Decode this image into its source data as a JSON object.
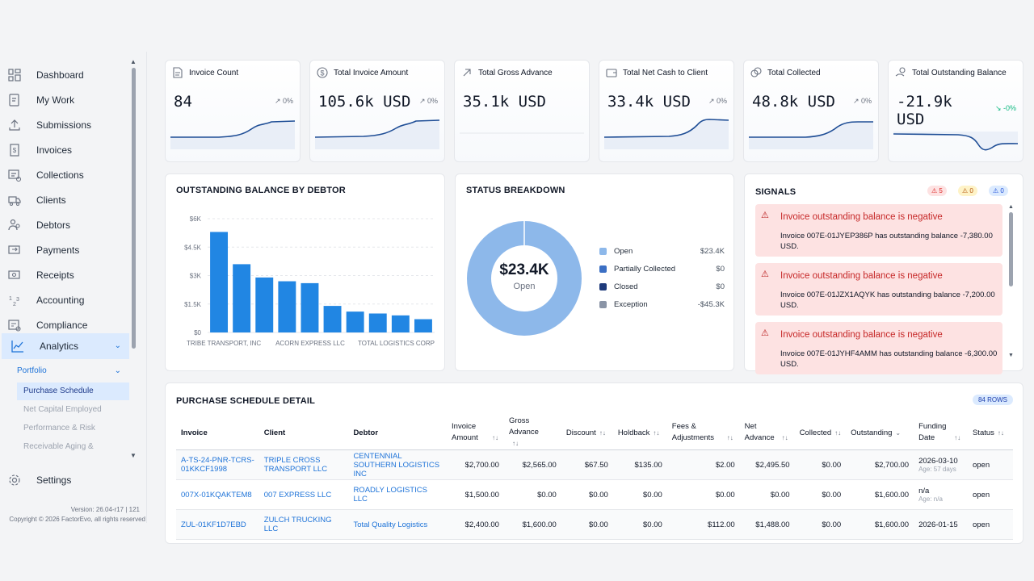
{
  "sidebar": {
    "items": [
      {
        "label": "Dashboard",
        "icon": "dashboard-icon"
      },
      {
        "label": "My Work",
        "icon": "clipboard-icon"
      },
      {
        "label": "Submissions",
        "icon": "upload-icon"
      },
      {
        "label": "Invoices",
        "icon": "invoice-icon"
      },
      {
        "label": "Collections",
        "icon": "collections-icon"
      },
      {
        "label": "Clients",
        "icon": "truck-icon"
      },
      {
        "label": "Debtors",
        "icon": "people-icon"
      },
      {
        "label": "Payments",
        "icon": "payment-icon"
      },
      {
        "label": "Receipts",
        "icon": "receipt-icon"
      },
      {
        "label": "Accounting",
        "icon": "accounting-icon"
      },
      {
        "label": "Compliance",
        "icon": "compliance-icon"
      },
      {
        "label": "Analytics",
        "icon": "analytics-icon"
      }
    ],
    "submenu_header": "Portfolio",
    "subitems": [
      "Purchase Schedule",
      "Net Capital Employed",
      "Performance & Risk",
      "Receivable Aging &"
    ],
    "settings_label": "Settings",
    "version": "Version: 26.04-r17 | 121",
    "copyright": "Copyright © 2026 FactorEvo, all rights reserved"
  },
  "kpis": [
    {
      "title": "Invoice Count",
      "value": "84",
      "delta": "↗ 0%",
      "icon": "document-icon"
    },
    {
      "title": "Total Invoice Amount",
      "value": "105.6k USD",
      "delta": "↗ 0%",
      "icon": "dollar-icon"
    },
    {
      "title": "Total Gross Advance",
      "value": "35.1k USD",
      "delta": "",
      "icon": "arrow-up-right-icon"
    },
    {
      "title": "Total Net Cash to Client",
      "value": "33.4k USD",
      "delta": "↗ 0%",
      "icon": "wallet-icon"
    },
    {
      "title": "Total Collected",
      "value": "48.8k USD",
      "delta": "↗ 0%",
      "icon": "coins-icon"
    },
    {
      "title": "Total Outstanding Balance",
      "value_line1": "-21.9k",
      "value_line2": "USD",
      "delta": "↘ -0%",
      "icon": "hand-coins-icon"
    }
  ],
  "outstanding": {
    "title": "OUTSTANDING BALANCE BY DEBTOR"
  },
  "chart_data": {
    "type": "bar",
    "title": "OUTSTANDING BALANCE BY DEBTOR",
    "categories": [
      "TRIBE TRANSPORT, INC",
      "",
      "",
      "",
      "ACORN EXPRESS LLC",
      "",
      "",
      "TOTAL LOGISTICS CORP",
      "",
      ""
    ],
    "values": [
      5300,
      3600,
      2900,
      2700,
      2600,
      1400,
      1100,
      1000,
      900,
      700
    ],
    "yticks": [
      "$0",
      "$1.5K",
      "$3K",
      "$4.5K",
      "$6K"
    ],
    "ylim": [
      0,
      6000
    ],
    "bar_color": "#2186e3"
  },
  "status": {
    "title": "STATUS BREAKDOWN",
    "center_value": "$23.4K",
    "center_label": "Open",
    "legend": [
      {
        "label": "Open",
        "value": "$23.4K",
        "color": "#8db8ea"
      },
      {
        "label": "Partially Collected",
        "value": "$0",
        "color": "#3b6fc4"
      },
      {
        "label": "Closed",
        "value": "$0",
        "color": "#1e3a7b"
      },
      {
        "label": "Exception",
        "value": "-$45.3K",
        "color": "#8a94a6"
      }
    ]
  },
  "signals": {
    "title": "SIGNALS",
    "badge_error": "5",
    "badge_warn": "0",
    "badge_info": "0",
    "items": [
      {
        "title": "Invoice outstanding balance is negative",
        "body": "Invoice 007E-01JYEP386P has outstanding balance -7,380.00 USD."
      },
      {
        "title": "Invoice outstanding balance is negative",
        "body": "Invoice 007E-01JZX1AQYK has outstanding balance -7,200.00 USD."
      },
      {
        "title": "Invoice outstanding balance is negative",
        "body": "Invoice 007E-01JYHF4AMM has outstanding balance -6,300.00 USD."
      }
    ]
  },
  "detail": {
    "title": "PURCHASE SCHEDULE DETAIL",
    "rows_badge": "84 ROWS",
    "columns": [
      "Invoice",
      "Client",
      "Debtor",
      "Invoice Amount",
      "Gross Advance",
      "Discount",
      "Holdback",
      "Fees & Adjustments",
      "Net Advance",
      "Collected",
      "Outstanding",
      "Funding Date",
      "Status"
    ],
    "rows": [
      {
        "invoice": "A-TS-24-PNR-TCRS-01KKCF1998",
        "client": "TRIPLE CROSS TRANSPORT LLC",
        "debtor": "CENTENNIAL SOUTHERN LOGISTICS INC",
        "amount": "$2,700.00",
        "gross": "$2,565.00",
        "discount": "$67.50",
        "holdback": "$135.00",
        "fees": "$2.00",
        "net": "$2,495.50",
        "collected": "$0.00",
        "outstanding": "$2,700.00",
        "date": "2026-03-10",
        "age": "Age: 57 days",
        "status": "open"
      },
      {
        "invoice": "007X-01KQAKTEM8",
        "client": "007 EXPRESS LLC",
        "debtor": "ROADLY LOGISTICS LLC",
        "amount": "$1,500.00",
        "gross": "$0.00",
        "discount": "$0.00",
        "holdback": "$0.00",
        "fees": "$0.00",
        "net": "$0.00",
        "collected": "$0.00",
        "outstanding": "$1,600.00",
        "date": "n/a",
        "age": "Age: n/a",
        "status": "open"
      },
      {
        "invoice": "ZUL-01KF1D7EBD",
        "client": "ZULCH TRUCKING LLC",
        "debtor": "Total Quality Logistics",
        "amount": "$2,400.00",
        "gross": "$1,600.00",
        "discount": "$0.00",
        "holdback": "$0.00",
        "fees": "$112.00",
        "net": "$1,488.00",
        "collected": "$0.00",
        "outstanding": "$1,600.00",
        "date": "2026-01-15",
        "age": "",
        "status": "open"
      }
    ]
  }
}
